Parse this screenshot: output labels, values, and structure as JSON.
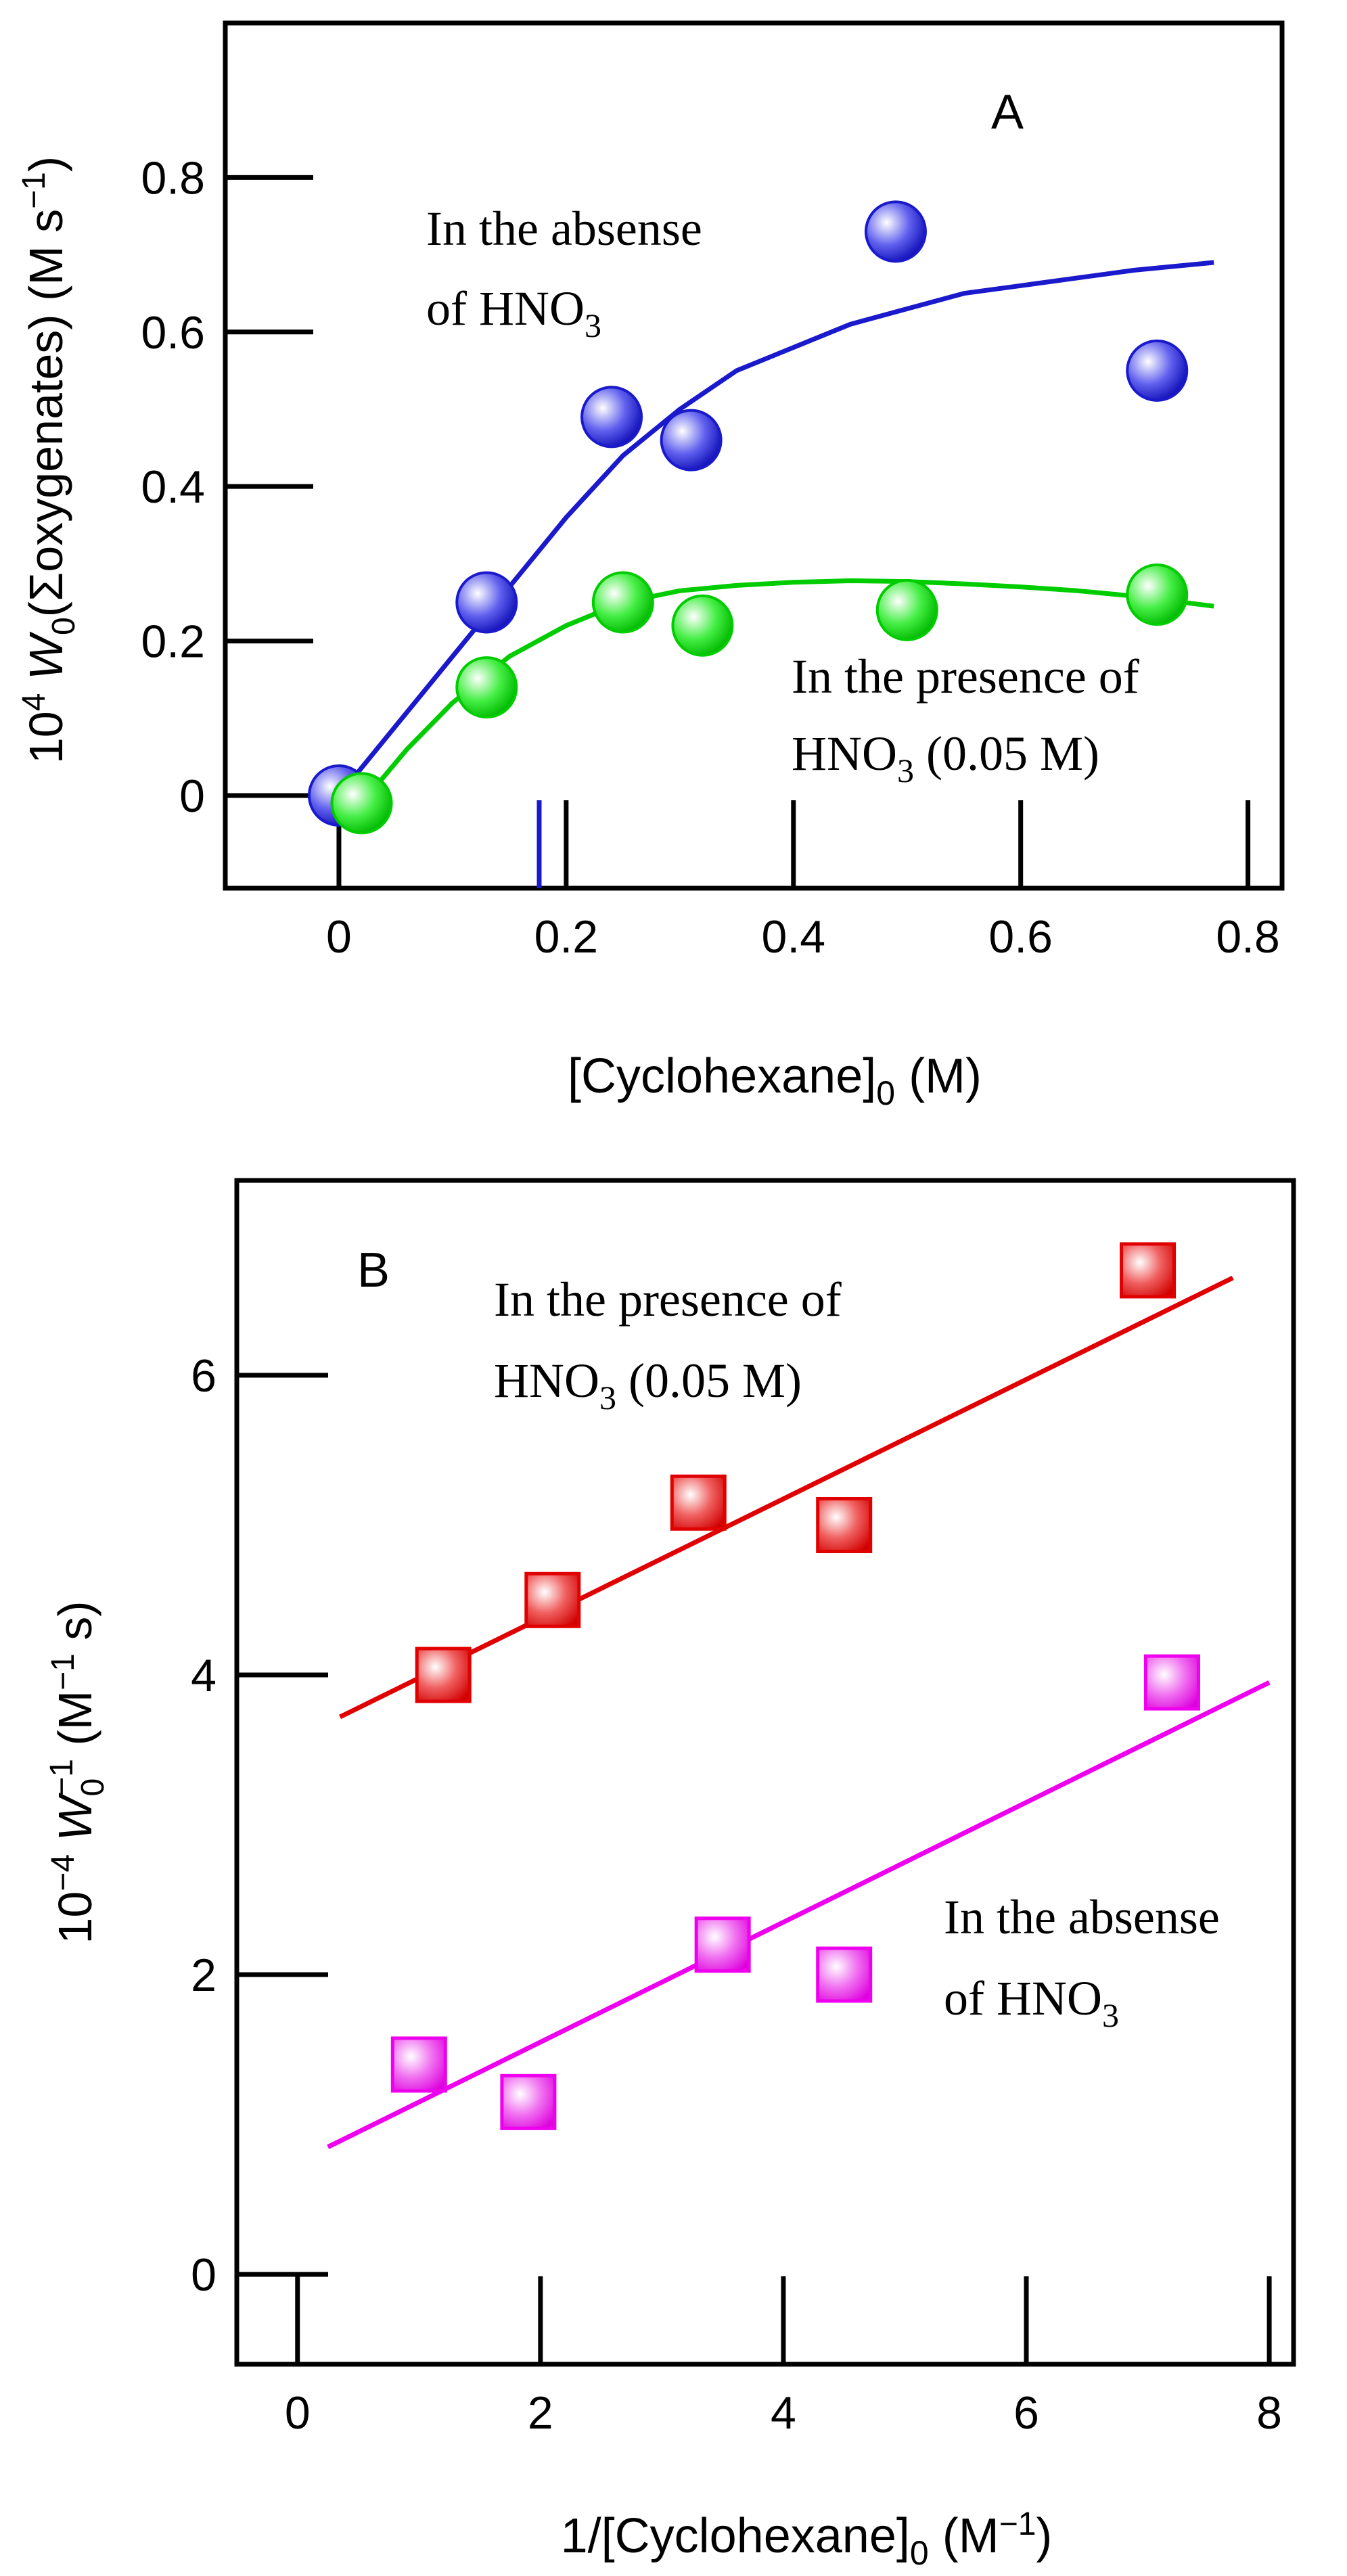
{
  "chart_data": [
    {
      "type": "scatter",
      "panel_label": "A",
      "xlabel": "[Cyclohexane]",
      "xlabel_sub": "0",
      "xlabel_unit": "(M)",
      "ylabel": {
        "prefix": "10",
        "prefix_sup": "4",
        "var": "W",
        "var_sub": "0",
        "rest": "(Σoxygenates) (M s",
        "unit_sup": "−1",
        "close": ")"
      },
      "xlim": [
        -0.1,
        0.83
      ],
      "ylim": [
        -0.12,
        1.0
      ],
      "x_ticks": [
        0,
        0.2,
        0.4,
        0.6,
        0.8
      ],
      "x_tick_labels": [
        "0",
        "0.2",
        "0.4",
        "0.6",
        "0.8"
      ],
      "y_ticks": [
        0,
        0.2,
        0.4,
        0.6,
        0.8
      ],
      "y_tick_labels": [
        "0",
        "0.2",
        "0.4",
        "0.6",
        "0.8"
      ],
      "series": [
        {
          "name": "In the absense of HNO3",
          "color": "#1a1acc",
          "fill": "#3b3bdc",
          "marker": "circle",
          "points": [
            [
              0,
              0.0
            ],
            [
              0.13,
              0.25
            ],
            [
              0.24,
              0.49
            ],
            [
              0.31,
              0.46
            ],
            [
              0.49,
              0.73
            ],
            [
              0.72,
              0.55
            ]
          ],
          "fit": [
            [
              0.0,
              0.0
            ],
            [
              0.05,
              0.09
            ],
            [
              0.1,
              0.18
            ],
            [
              0.15,
              0.27
            ],
            [
              0.2,
              0.36
            ],
            [
              0.25,
              0.44
            ],
            [
              0.3,
              0.5
            ],
            [
              0.35,
              0.55
            ],
            [
              0.4,
              0.58
            ],
            [
              0.45,
              0.61
            ],
            [
              0.5,
              0.63
            ],
            [
              0.55,
              0.65
            ],
            [
              0.6,
              0.66
            ],
            [
              0.65,
              0.67
            ],
            [
              0.7,
              0.68
            ],
            [
              0.77,
              0.69
            ]
          ]
        },
        {
          "name": "In the presence of HNO3 (0.05 M)",
          "color": "#00cc00",
          "fill": "#22dd22",
          "marker": "circle",
          "points": [
            [
              0.02,
              -0.01
            ],
            [
              0.13,
              0.14
            ],
            [
              0.25,
              0.25
            ],
            [
              0.32,
              0.22
            ],
            [
              0.5,
              0.24
            ],
            [
              0.72,
              0.26
            ]
          ],
          "fit": [
            [
              0.02,
              -0.01
            ],
            [
              0.06,
              0.06
            ],
            [
              0.1,
              0.12
            ],
            [
              0.15,
              0.18
            ],
            [
              0.2,
              0.22
            ],
            [
              0.25,
              0.25
            ],
            [
              0.3,
              0.265
            ],
            [
              0.35,
              0.272
            ],
            [
              0.4,
              0.276
            ],
            [
              0.45,
              0.278
            ],
            [
              0.5,
              0.277
            ],
            [
              0.55,
              0.274
            ],
            [
              0.6,
              0.27
            ],
            [
              0.65,
              0.265
            ],
            [
              0.7,
              0.258
            ],
            [
              0.77,
              0.245
            ]
          ]
        }
      ],
      "annotations": [
        {
          "lines": [
            "In the absense",
            "of HNO3"
          ]
        },
        {
          "lines": [
            "In the presence of",
            "HNO3 (0.05 M)"
          ]
        }
      ]
    },
    {
      "type": "scatter",
      "panel_label": "B",
      "xlabel": "1/[Cyclohexane]",
      "xlabel_sub": "0",
      "xlabel_unit_pre": "(M",
      "xlabel_unit_sup": "−1",
      "xlabel_unit_post": ")",
      "ylabel": {
        "prefix": "10",
        "prefix_sup": "−4",
        "var": "W",
        "var_sub": "0",
        "var_sup": "−1",
        "rest": "  (M",
        "unit_sup": "−1",
        "close": " s)"
      },
      "xlim": [
        -0.5,
        8.2
      ],
      "ylim": [
        -0.6,
        7.3
      ],
      "x_ticks": [
        0,
        2,
        4,
        6,
        8
      ],
      "x_tick_labels": [
        "0",
        "2",
        "4",
        "6",
        "8"
      ],
      "y_ticks": [
        0,
        2,
        4,
        6
      ],
      "y_tick_labels": [
        "0",
        "2",
        "4",
        "6"
      ],
      "series": [
        {
          "name": "In the presence of HNO3 (0.05 M)",
          "color": "#e00000",
          "fill": "#ee2222",
          "marker": "square",
          "points": [
            [
              1.2,
              4.0
            ],
            [
              2.1,
              4.5
            ],
            [
              3.3,
              5.15
            ],
            [
              4.5,
              5.0
            ],
            [
              7.0,
              6.7
            ]
          ],
          "fit": [
            [
              0.35,
              3.72
            ],
            [
              7.7,
              6.65
            ]
          ]
        },
        {
          "name": "In the absense of HNO3",
          "color": "#ee00ee",
          "fill": "#f020f0",
          "marker": "square",
          "points": [
            [
              1.0,
              1.4
            ],
            [
              1.9,
              1.15
            ],
            [
              3.5,
              2.2
            ],
            [
              4.5,
              2.0
            ],
            [
              7.2,
              3.95
            ]
          ],
          "fit": [
            [
              0.25,
              0.85
            ],
            [
              8.0,
              3.95
            ]
          ]
        }
      ],
      "annotations": [
        {
          "lines": [
            "In the presence of",
            "HNO3 (0.05 M)"
          ]
        },
        {
          "lines": [
            "In the absense",
            "of HNO3"
          ]
        }
      ]
    }
  ]
}
